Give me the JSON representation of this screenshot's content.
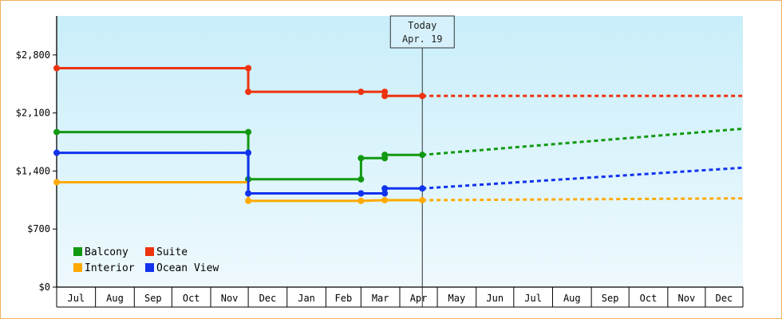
{
  "chart_data": {
    "type": "line",
    "title": "",
    "xlabel": "",
    "ylabel": "",
    "ylim": [
      0,
      3270
    ],
    "y_ticks": [
      0,
      700,
      1400,
      2100,
      2800
    ],
    "y_tick_labels": [
      "$0",
      "$700",
      "$1,400",
      "$2,100",
      "$2,800"
    ],
    "x_range": [
      "2018-07-01",
      "2019-12-31"
    ],
    "x_tick_labels": [
      "Jul",
      "Aug",
      "Sep",
      "Oct",
      "Nov",
      "Dec",
      "Jan",
      "Feb",
      "Mar",
      "Apr",
      "May",
      "Jun",
      "Jul",
      "Aug",
      "Sep",
      "Oct",
      "Nov",
      "Dec"
    ],
    "month_starts": [
      "2018-07-01",
      "2018-08-01",
      "2018-09-01",
      "2018-10-01",
      "2018-11-01",
      "2018-12-01",
      "2019-01-01",
      "2019-02-01",
      "2019-03-01",
      "2019-04-01",
      "2019-05-01",
      "2019-06-01",
      "2019-07-01",
      "2019-08-01",
      "2019-09-01",
      "2019-10-01",
      "2019-11-01",
      "2019-12-01",
      "2020-01-01"
    ],
    "today": {
      "date": "2019-04-19",
      "label_line1": "Today",
      "label_line2": "Apr. 19"
    },
    "grid": false,
    "legend_position": "bottom-left",
    "series": [
      {
        "name": "Balcony",
        "color": "#119911",
        "points": [
          [
            "2018-07-01",
            1870
          ],
          [
            "2018-12-01",
            1870
          ],
          [
            "2018-12-01",
            1300
          ],
          [
            "2019-03-01",
            1300
          ],
          [
            "2019-03-01",
            1555
          ],
          [
            "2019-03-20",
            1555
          ],
          [
            "2019-03-20",
            1595
          ],
          [
            "2019-04-19",
            1595
          ]
        ],
        "markers": [
          [
            "2018-07-01",
            1870
          ],
          [
            "2018-12-01",
            1870
          ],
          [
            "2018-12-01",
            1300
          ],
          [
            "2019-03-01",
            1300
          ],
          [
            "2019-03-01",
            1555
          ],
          [
            "2019-03-20",
            1555
          ],
          [
            "2019-03-20",
            1595
          ],
          [
            "2019-04-19",
            1595
          ]
        ],
        "forecast": [
          [
            "2019-04-19",
            1595
          ],
          [
            "2019-12-31",
            1910
          ]
        ]
      },
      {
        "name": "Suite",
        "color": "#ee3311",
        "points": [
          [
            "2018-07-01",
            2640
          ],
          [
            "2018-12-01",
            2640
          ],
          [
            "2018-12-01",
            2355
          ],
          [
            "2019-03-01",
            2355
          ],
          [
            "2019-03-20",
            2355
          ],
          [
            "2019-03-20",
            2305
          ],
          [
            "2019-04-19",
            2305
          ]
        ],
        "markers": [
          [
            "2018-07-01",
            2640
          ],
          [
            "2018-12-01",
            2640
          ],
          [
            "2018-12-01",
            2355
          ],
          [
            "2019-03-01",
            2355
          ],
          [
            "2019-03-20",
            2355
          ],
          [
            "2019-03-20",
            2305
          ],
          [
            "2019-04-19",
            2305
          ]
        ],
        "forecast": [
          [
            "2019-04-19",
            2305
          ],
          [
            "2019-12-31",
            2305
          ]
        ]
      },
      {
        "name": "Interior",
        "color": "#ffaa00",
        "points": [
          [
            "2018-07-01",
            1265
          ],
          [
            "2018-12-01",
            1265
          ],
          [
            "2018-12-01",
            1040
          ],
          [
            "2019-03-01",
            1040
          ],
          [
            "2019-03-20",
            1048
          ],
          [
            "2019-04-19",
            1048
          ]
        ],
        "markers": [
          [
            "2018-07-01",
            1265
          ],
          [
            "2018-12-01",
            1040
          ],
          [
            "2019-03-01",
            1040
          ],
          [
            "2019-03-20",
            1048
          ],
          [
            "2019-04-19",
            1048
          ]
        ],
        "forecast": [
          [
            "2019-04-19",
            1048
          ],
          [
            "2019-12-31",
            1070
          ]
        ]
      },
      {
        "name": "Ocean View",
        "color": "#1133ee",
        "points": [
          [
            "2018-07-01",
            1620
          ],
          [
            "2018-12-01",
            1620
          ],
          [
            "2018-12-01",
            1130
          ],
          [
            "2019-03-01",
            1130
          ],
          [
            "2019-03-20",
            1130
          ],
          [
            "2019-03-20",
            1190
          ],
          [
            "2019-04-19",
            1190
          ]
        ],
        "markers": [
          [
            "2018-07-01",
            1620
          ],
          [
            "2018-12-01",
            1620
          ],
          [
            "2018-12-01",
            1130
          ],
          [
            "2019-03-01",
            1130
          ],
          [
            "2019-03-20",
            1130
          ],
          [
            "2019-03-20",
            1190
          ],
          [
            "2019-04-19",
            1190
          ]
        ],
        "forecast": [
          [
            "2019-04-19",
            1190
          ],
          [
            "2019-12-31",
            1440
          ]
        ]
      }
    ]
  }
}
